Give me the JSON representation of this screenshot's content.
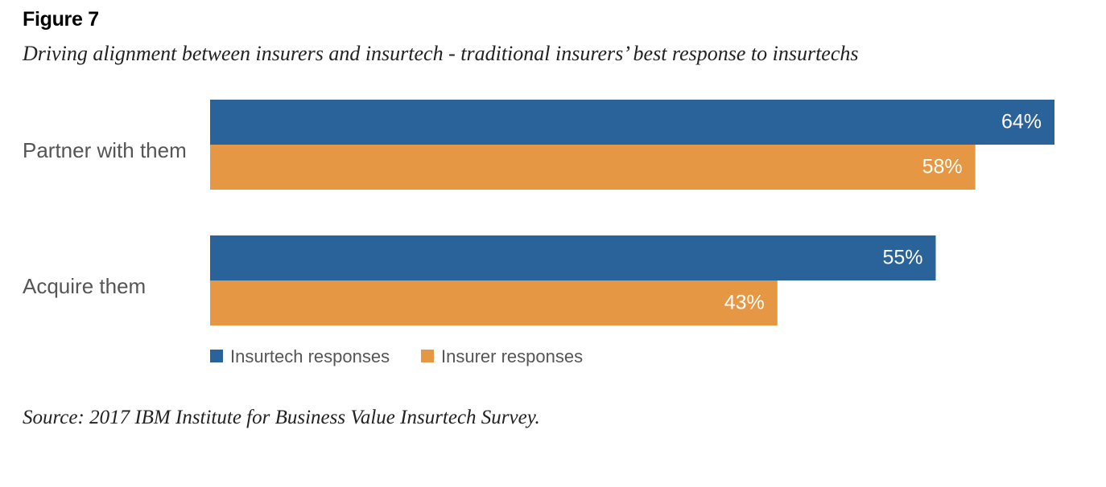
{
  "figure_label": "Figure 7",
  "title": "Driving alignment between insurers and insurtech - traditional insurers’ best response to insurtechs",
  "source": "Source: 2017 IBM Institute for Business Value Insurtech Survey.",
  "chart_data": {
    "type": "bar",
    "orientation": "horizontal",
    "categories": [
      "Partner with them",
      "Acquire them"
    ],
    "series": [
      {
        "name": "Insurtech responses",
        "values": [
          64,
          55
        ],
        "color": "#2a6399"
      },
      {
        "name": "Insurer responses",
        "values": [
          58,
          43
        ],
        "color": "#e69743"
      }
    ],
    "value_suffix": "%",
    "xlim": [
      0,
      64
    ],
    "grid": false,
    "legend_position": "bottom-left"
  }
}
